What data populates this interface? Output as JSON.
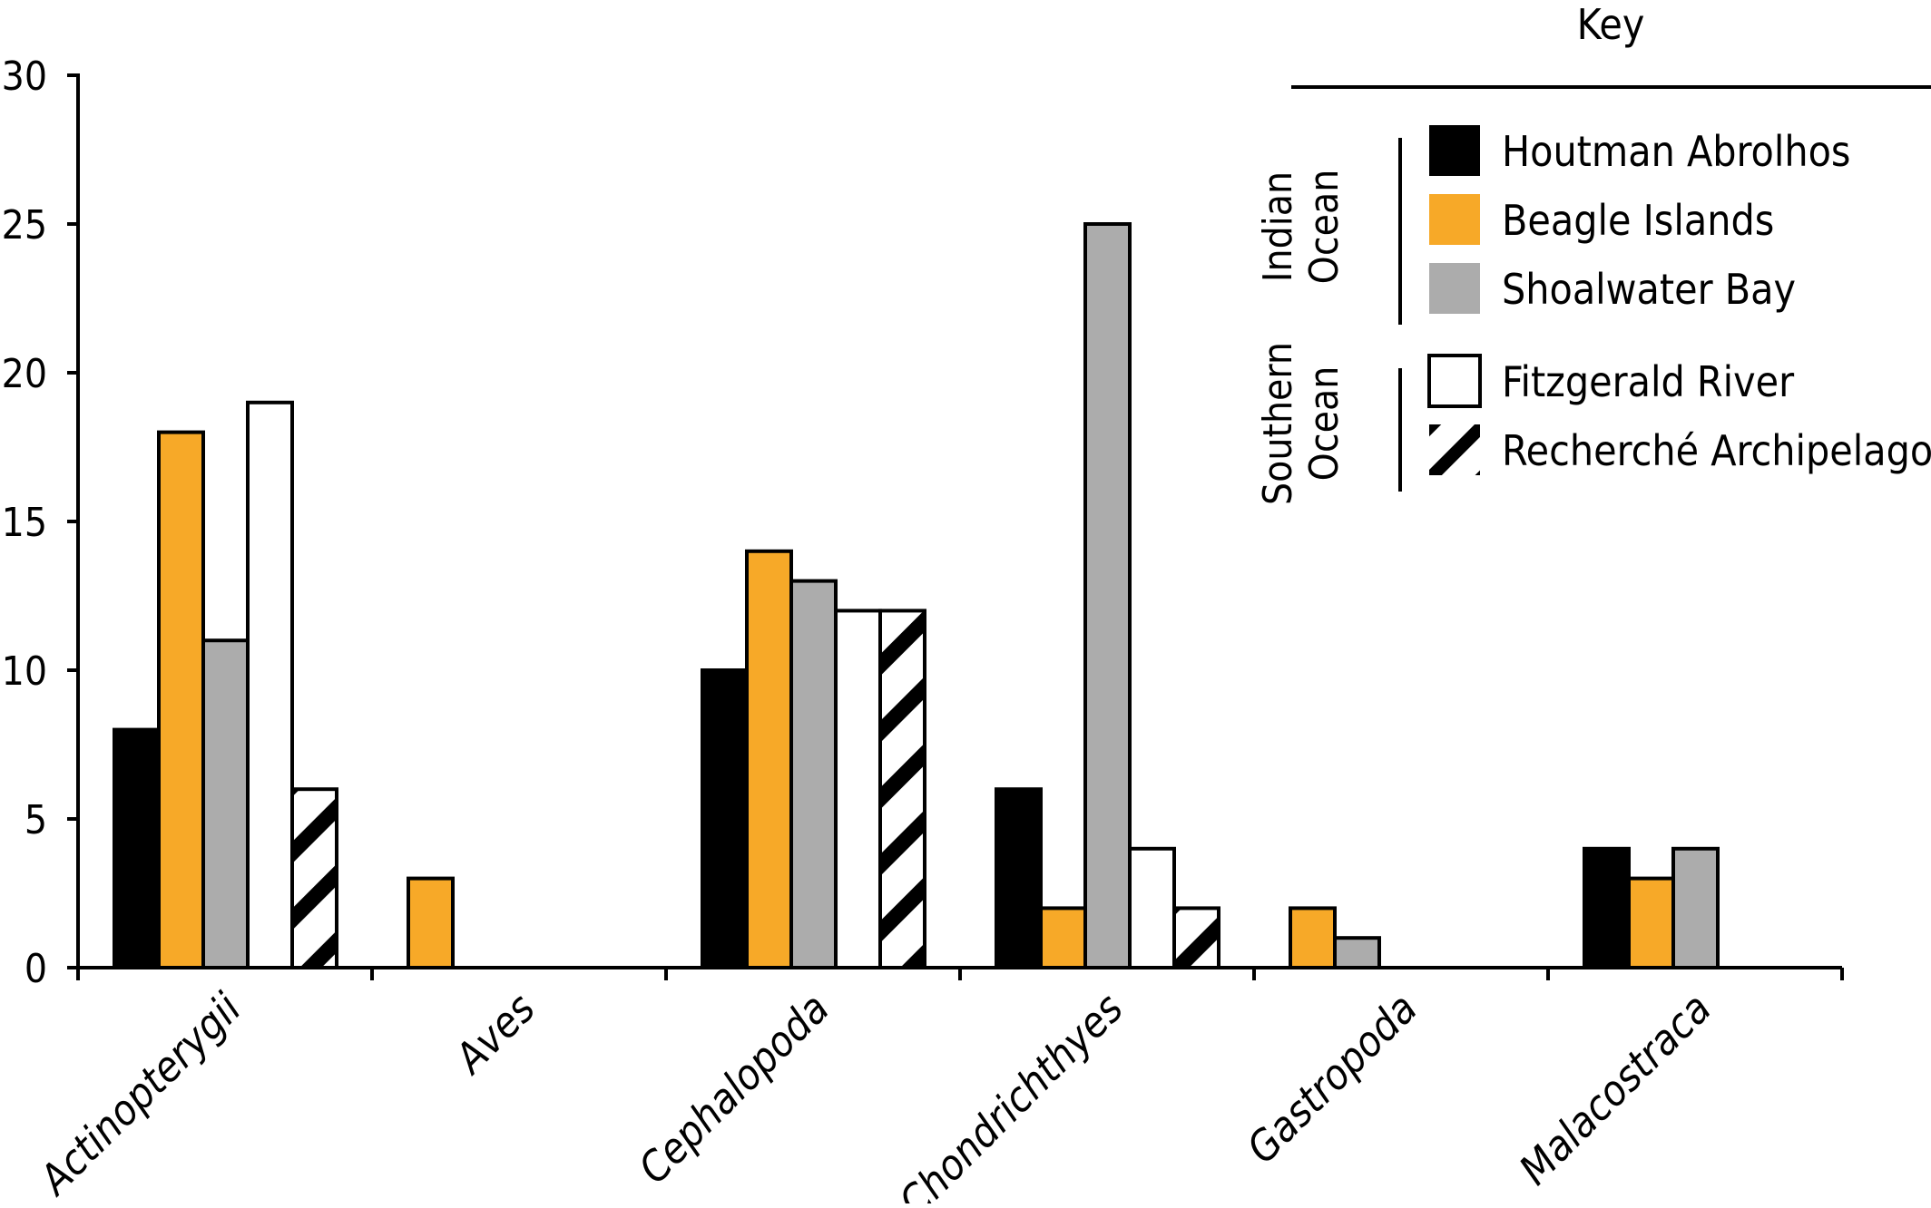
{
  "chart_data": {
    "type": "bar",
    "categories": [
      "Actinopterygii",
      "Aves",
      "Cephalopoda",
      "Chondrichthyes",
      "Gastropoda",
      "Malacostraca"
    ],
    "series": [
      {
        "name": "Houtman Abrolhos",
        "color": "#000000",
        "pattern": "solid",
        "values": [
          8,
          0,
          10,
          6,
          0,
          4
        ]
      },
      {
        "name": "Beagle Islands",
        "color": "#f7a928",
        "pattern": "solid",
        "values": [
          18,
          3,
          14,
          2,
          2,
          3
        ]
      },
      {
        "name": "Shoalwater Bay",
        "color": "#acacac",
        "pattern": "solid",
        "values": [
          11,
          0,
          13,
          25,
          1,
          4
        ]
      },
      {
        "name": "Fitzgerald River",
        "color": "#ffffff",
        "pattern": "solid",
        "values": [
          19,
          0,
          12,
          4,
          0,
          0
        ]
      },
      {
        "name": "Recherché Archipelago",
        "color": "#ffffff",
        "pattern": "hatched",
        "values": [
          6,
          0,
          12,
          2,
          0,
          0
        ]
      }
    ],
    "ylim": [
      0,
      30
    ],
    "yticks": [
      0,
      5,
      10,
      15,
      20,
      25,
      30
    ],
    "xlabel": "",
    "ylabel": "",
    "legend": {
      "title": "Key",
      "placement": "top-right",
      "groups": [
        {
          "label_lines": [
            "Indian",
            "Ocean"
          ],
          "series": [
            "Houtman Abrolhos",
            "Beagle Islands",
            "Shoalwater Bay"
          ]
        },
        {
          "label_lines": [
            "Southern",
            "Ocean"
          ],
          "series": [
            "Fitzgerald River",
            "Recherché Archipelago"
          ]
        }
      ]
    }
  }
}
